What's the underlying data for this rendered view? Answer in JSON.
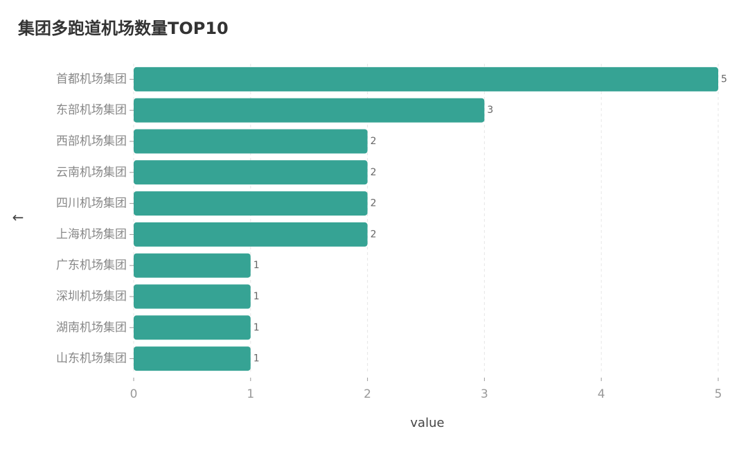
{
  "chart_data": {
    "type": "hbar",
    "title": "集团多跑道机场数量TOP10",
    "categories": [
      "首都机场集团",
      "东部机场集团",
      "西部机场集团",
      "云南机场集团",
      "四川机场集团",
      "上海机场集团",
      "广东机场集团",
      "深圳机场集团",
      "湖南机场集团",
      "山东机场集团"
    ],
    "values": [
      5,
      3,
      2,
      2,
      2,
      2,
      1,
      1,
      1,
      1
    ],
    "color": "#36a394",
    "xlabel": "value",
    "ylabel": "←",
    "xlim": [
      0,
      5
    ],
    "xticks": [
      0,
      1,
      2,
      3,
      4,
      5
    ],
    "grid": true
  }
}
